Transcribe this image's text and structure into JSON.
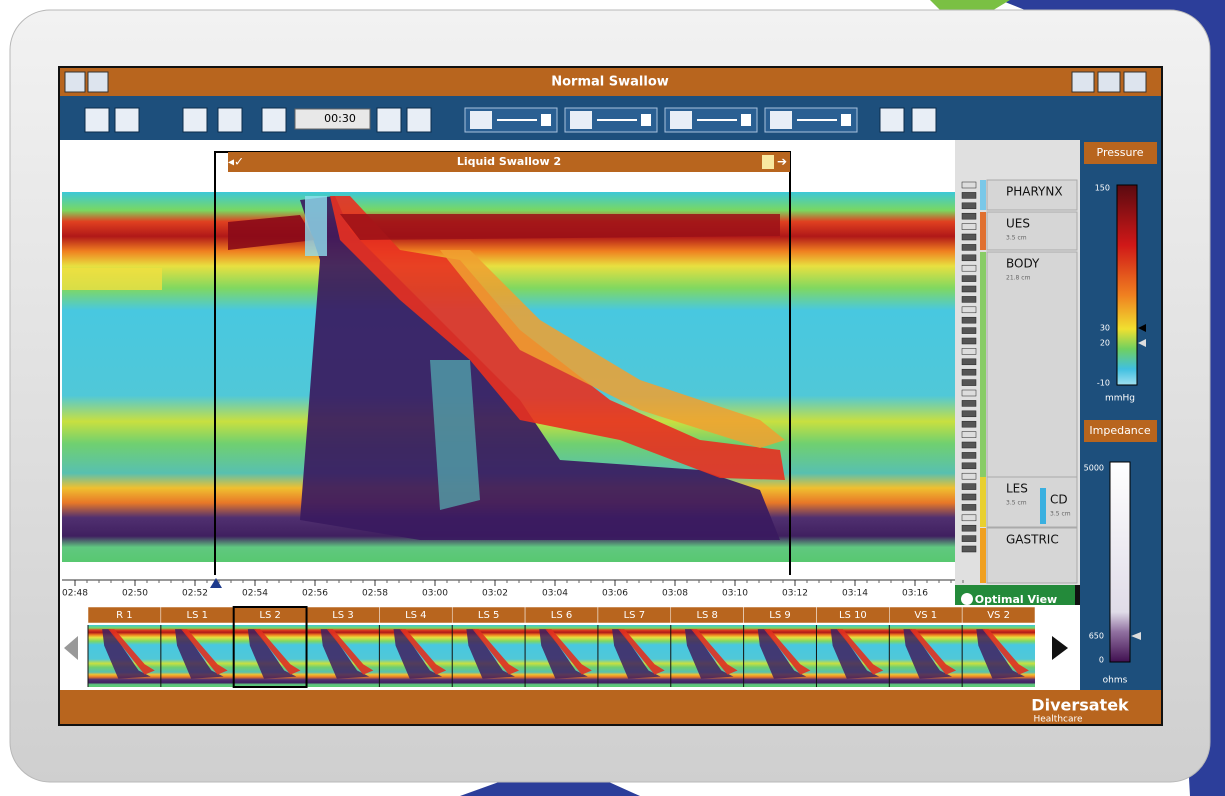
{
  "header": {
    "title": "Normal Swallow"
  },
  "toolbar": {
    "time_window": "00:30"
  },
  "swallow_window": {
    "title": "Liquid Swallow 2"
  },
  "regions": [
    {
      "label": "PHARYNX"
    },
    {
      "label": "UES",
      "length": "3.5 cm"
    },
    {
      "label": "BODY",
      "length": "21.8 cm"
    },
    {
      "label": "LES",
      "length": "3.5 cm"
    },
    {
      "label": "CD",
      "length": "3.5 cm"
    },
    {
      "label": "GASTRIC"
    }
  ],
  "pressure_scale": {
    "title": "Pressure",
    "labels": [
      "150",
      "30",
      "20",
      "-10"
    ],
    "unit": "mmHg"
  },
  "impedance_scale": {
    "title": "Impedance",
    "labels": [
      "5000",
      "650",
      "0"
    ],
    "unit": "ohms"
  },
  "time_axis": [
    "02:48",
    "02:50",
    "02:52",
    "02:54",
    "02:56",
    "02:58",
    "03:00",
    "03:02",
    "03:04",
    "03:06",
    "03:08",
    "03:10",
    "03:12",
    "03:14",
    "03:16"
  ],
  "optimal_view": "Optimal View",
  "swallows": [
    "R 1",
    "LS 1",
    "LS 2",
    "LS 3",
    "LS 4",
    "LS 5",
    "LS 6",
    "LS 7",
    "LS 8",
    "LS 9",
    "LS 10",
    "VS 1",
    "VS 2"
  ],
  "brand": {
    "name": "Diversatek",
    "sub": "Healthcare"
  }
}
